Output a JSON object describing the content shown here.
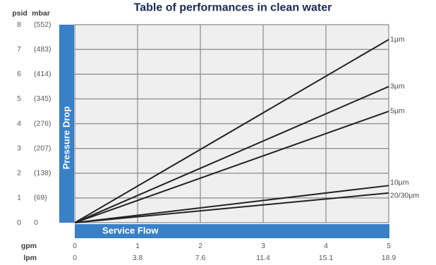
{
  "chart_data": {
    "type": "line",
    "title": "Table of performances in clean water",
    "ylabel": "Pressure Drop",
    "xlabel": "Service Flow",
    "y_units": [
      "psid",
      "mbar"
    ],
    "x_units": [
      "gpm",
      "lpm"
    ],
    "ylim": [
      0,
      8
    ],
    "xlim": [
      0,
      5
    ],
    "y_ticks": [
      {
        "psid": "0",
        "mbar": "0"
      },
      {
        "psid": "1",
        "mbar": "(69)"
      },
      {
        "psid": "2",
        "mbar": "(138)"
      },
      {
        "psid": "3",
        "mbar": "(207)"
      },
      {
        "psid": "4",
        "mbar": "(276)"
      },
      {
        "psid": "5",
        "mbar": "(345)"
      },
      {
        "psid": "6",
        "mbar": "(414)"
      },
      {
        "psid": "7",
        "mbar": "(483)"
      },
      {
        "psid": "8",
        "mbar": "(552)"
      }
    ],
    "x_ticks": [
      {
        "gpm": "0",
        "lpm": "0"
      },
      {
        "gpm": "1",
        "lpm": "3.8"
      },
      {
        "gpm": "2",
        "lpm": "7.6"
      },
      {
        "gpm": "3",
        "lpm": "11.4"
      },
      {
        "gpm": "4",
        "lpm": "15.1"
      },
      {
        "gpm": "5",
        "lpm": "18.9"
      }
    ],
    "grid": true,
    "series": [
      {
        "name": "1µm",
        "x": [
          0,
          5
        ],
        "y": [
          0,
          7.4
        ]
      },
      {
        "name": "3µm",
        "x": [
          0,
          5
        ],
        "y": [
          0,
          5.5
        ]
      },
      {
        "name": "5µm",
        "x": [
          0,
          5
        ],
        "y": [
          0,
          4.5
        ]
      },
      {
        "name": "10µm",
        "x": [
          0,
          5
        ],
        "y": [
          0,
          1.5
        ]
      },
      {
        "name": "20/30µm",
        "x": [
          0,
          5
        ],
        "y": [
          0,
          1.2
        ]
      }
    ],
    "colors": {
      "band": "#3a80c6",
      "line": "#222222",
      "grid": "#8a8a8a",
      "plot_bg": "#efefef"
    }
  }
}
